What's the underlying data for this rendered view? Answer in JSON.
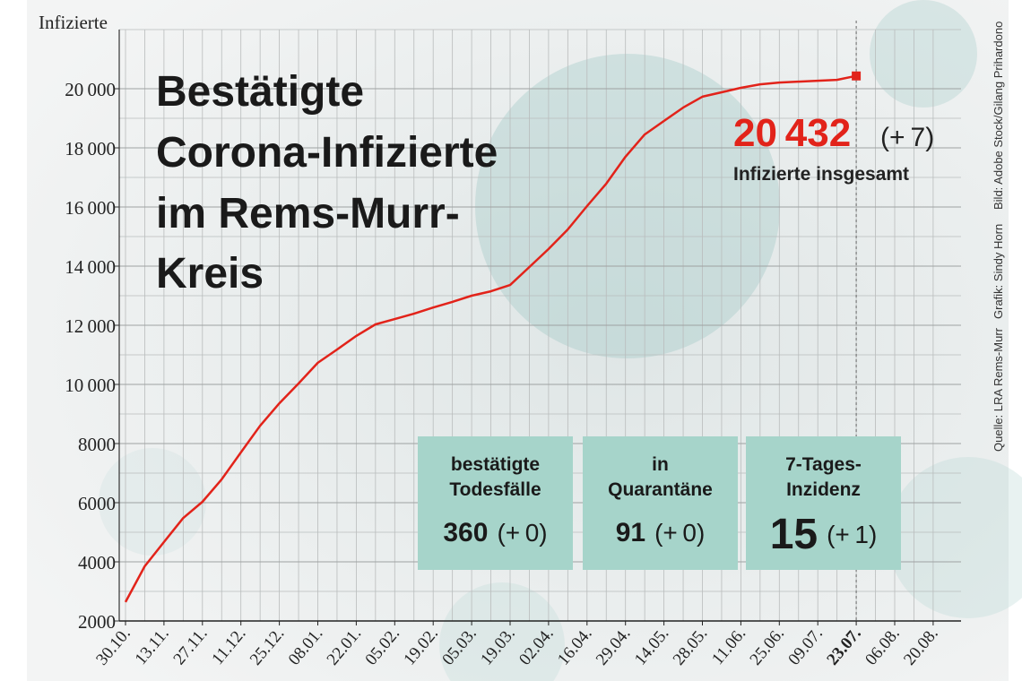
{
  "chart_data": {
    "type": "line",
    "title": [
      "Bestätigte",
      "Corona-Infizierte",
      "im Rems-Murr-",
      "Kreis"
    ],
    "y_label": "Infizierte",
    "categories": [
      "30.10.",
      null,
      "13.11.",
      null,
      "27.11.",
      null,
      "11.12.",
      null,
      "25.12.",
      null,
      "08.01.",
      null,
      "22.01.",
      null,
      "05.02.",
      null,
      "19.02.",
      null,
      "05.03.",
      null,
      "19.03.",
      null,
      "02.04.",
      null,
      "16.04.",
      null,
      "29.04.",
      null,
      "14.05.",
      null,
      "28.05.",
      null,
      "11.06.",
      null,
      "25.06.",
      null,
      "09.07.",
      null,
      "23.07.",
      null,
      "06.08.",
      null,
      "20.08."
    ],
    "series": [
      {
        "name": "Infizierte",
        "color": "#e2231a",
        "values": [
          2640,
          3850,
          4670,
          5480,
          6030,
          6790,
          7700,
          8600,
          9360,
          10030,
          10730,
          11180,
          11640,
          12030,
          12210,
          12390,
          12600,
          12790,
          13000,
          13150,
          13360,
          13970,
          14580,
          15240,
          16030,
          16790,
          17700,
          18450,
          18910,
          19360,
          19730,
          19880,
          20030,
          20150,
          20210,
          20240,
          20270,
          20300,
          20432,
          null,
          null,
          null,
          null
        ]
      }
    ],
    "ylim": [
      2000,
      22000
    ],
    "yticks": [
      2000,
      4000,
      6000,
      8000,
      {
        "value": 10000,
        "label": "10 000"
      },
      {
        "value": 12000,
        "label": "12 000"
      },
      {
        "value": 14000,
        "label": "14 000"
      },
      {
        "value": 16000,
        "label": "16 000"
      },
      {
        "value": 18000,
        "label": "18 000"
      },
      {
        "value": 20000,
        "label": "20 000"
      }
    ],
    "grid": true,
    "annotation": {
      "total": "20 432",
      "change": "(+ 7)",
      "caption": "Infizierte insgesamt"
    },
    "boxes": [
      {
        "label": [
          "bestätigte",
          "Todesfälle"
        ],
        "value": "360",
        "change": "(+ 0)"
      },
      {
        "label": [
          "in",
          "Quarantäne"
        ],
        "value": "91",
        "change": "(+ 0)"
      },
      {
        "label": [
          "7-Tages-",
          "Inzidenz"
        ],
        "value": "15",
        "change": "(+ 1)"
      }
    ],
    "credits": [
      "Bild: Adobe Stock/Gilang Prihardono",
      "Grafik: Sindy Horn",
      "Quelle: LRA Rems-Murr"
    ]
  }
}
